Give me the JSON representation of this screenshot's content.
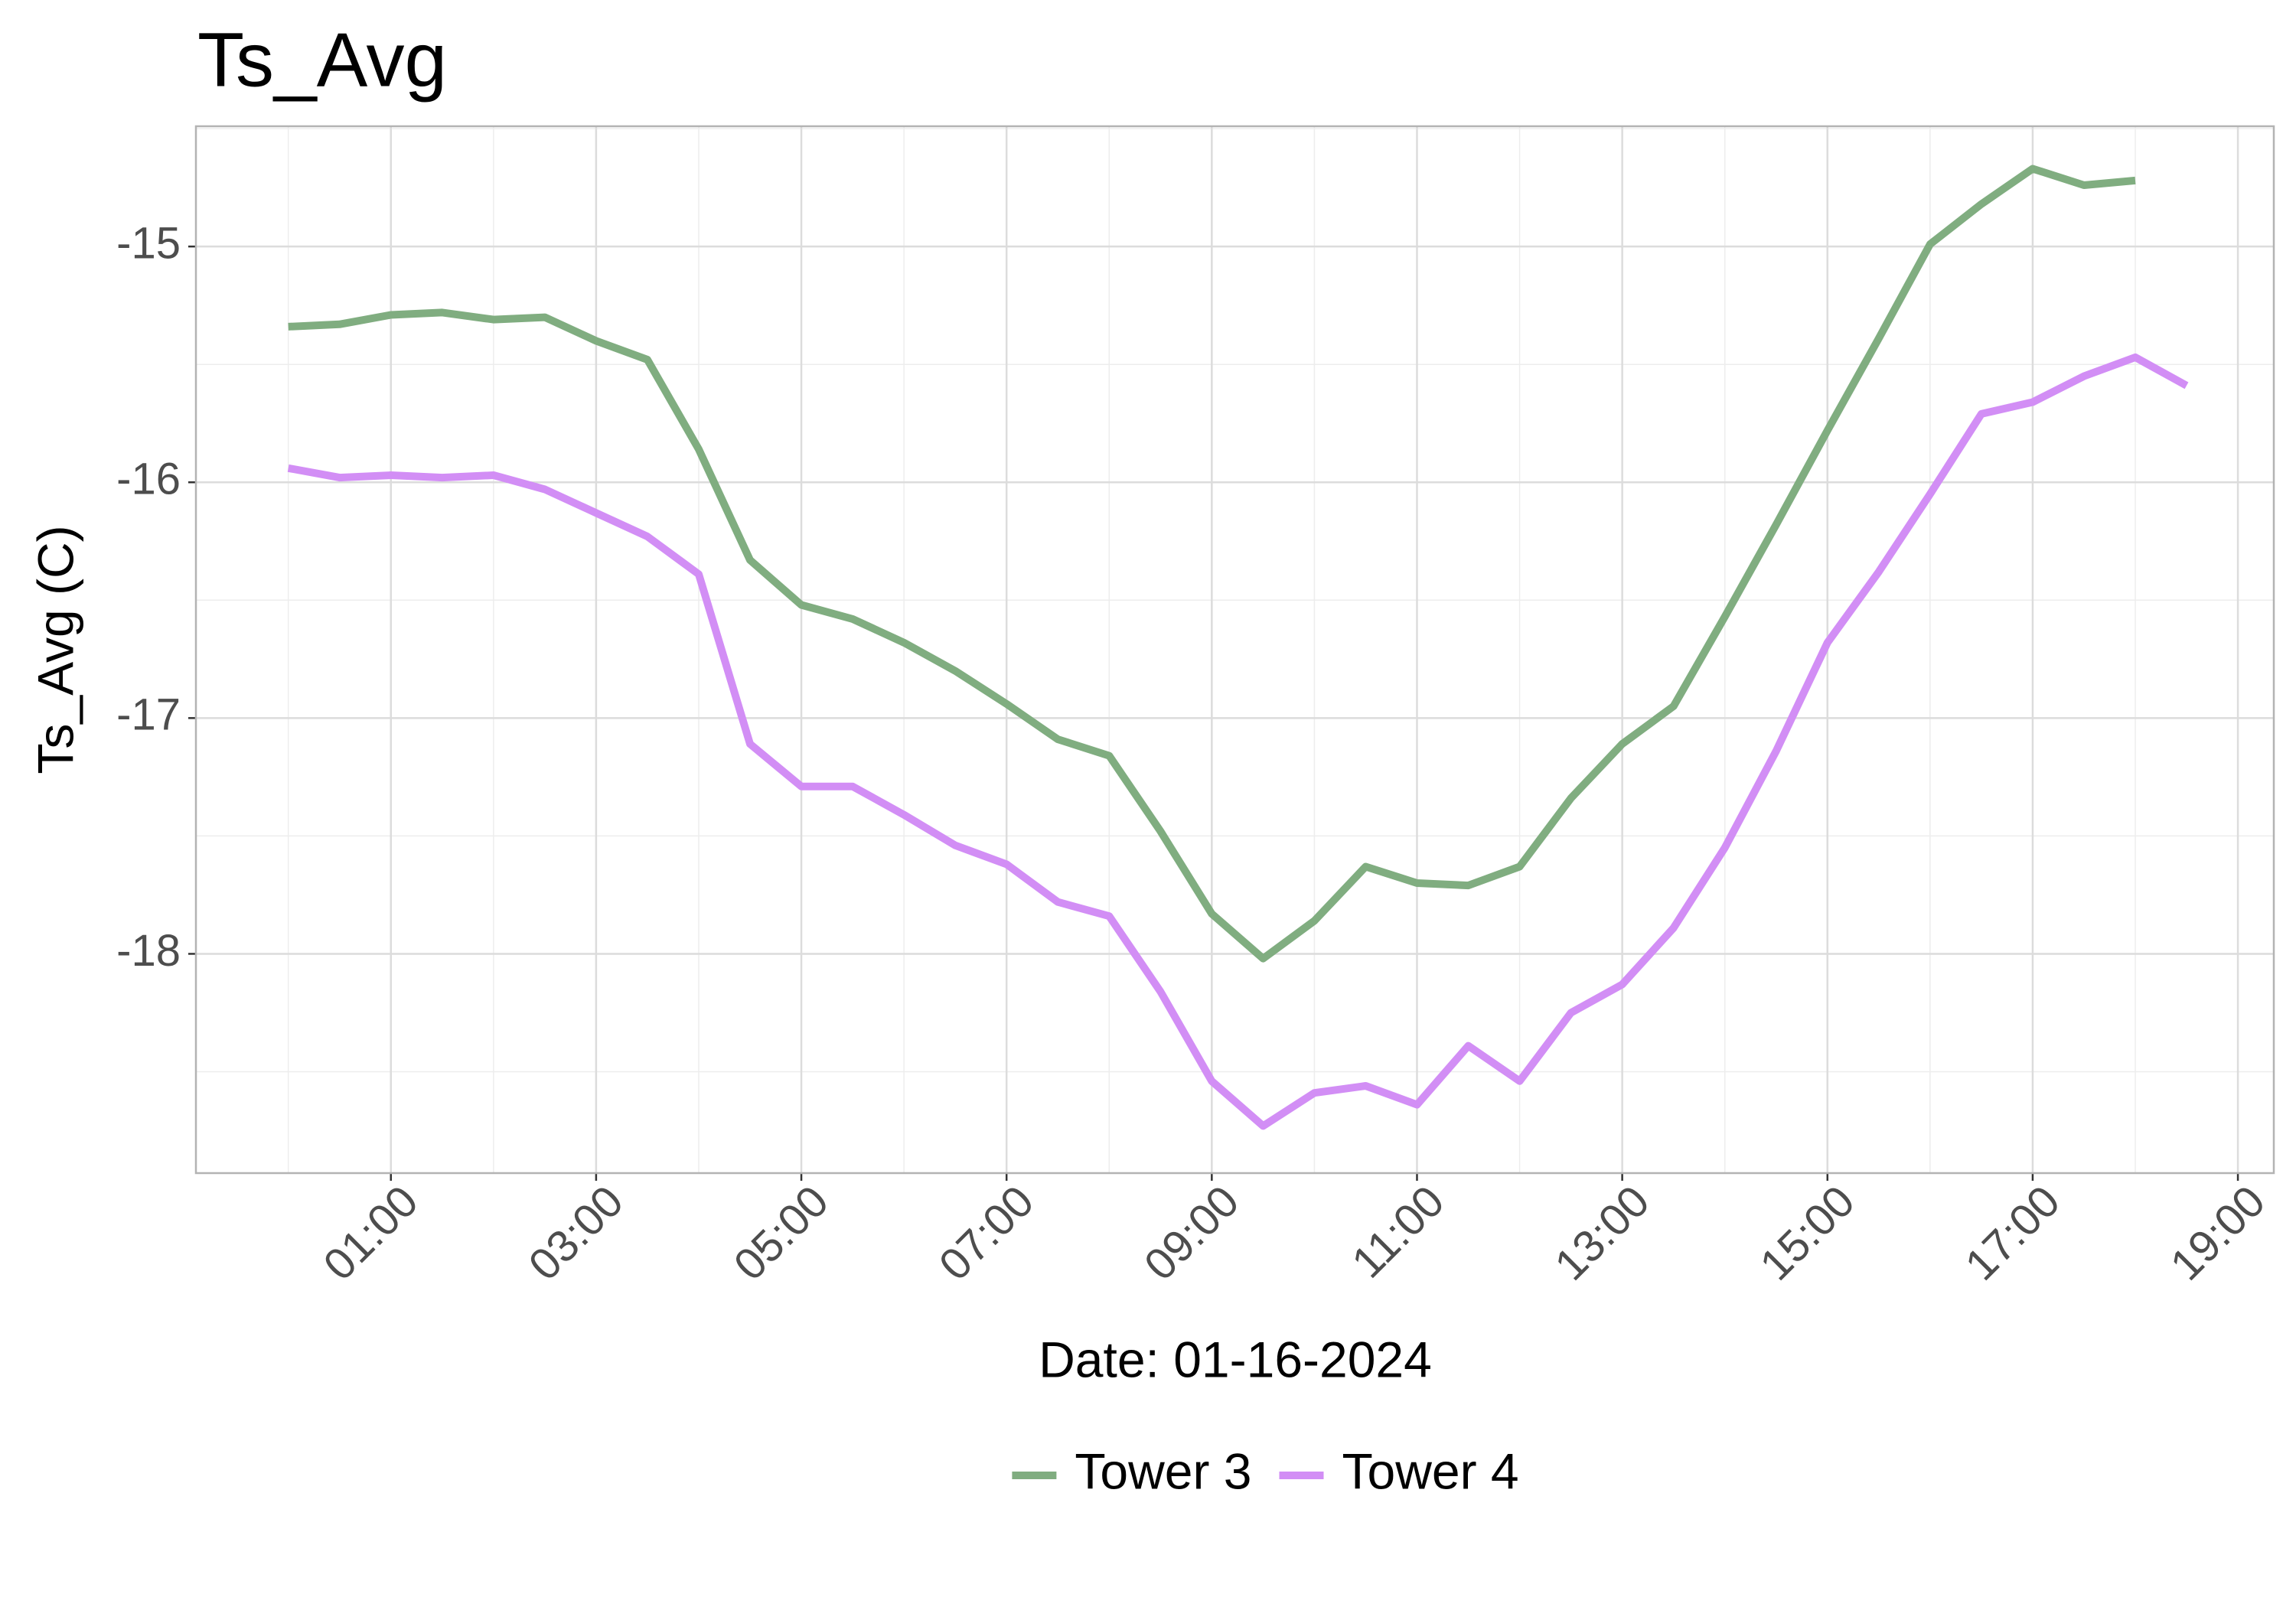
{
  "chart_data": {
    "type": "line",
    "title": "Ts_Avg",
    "x_label": "Date: 01-16-2024",
    "y_label": "Ts_Avg (C)",
    "x": [
      0,
      0.5,
      1,
      1.5,
      2,
      2.5,
      3,
      3.5,
      4,
      4.5,
      5,
      5.5,
      6,
      6.5,
      7,
      7.5,
      8,
      8.5,
      9,
      9.5,
      10,
      10.5,
      11,
      11.5,
      12,
      12.5,
      13,
      13.5,
      14,
      14.5,
      15,
      15.5,
      16,
      16.5,
      17,
      17.5,
      18,
      18.5
    ],
    "series": [
      {
        "name": "Tower 3",
        "color": "#80ad80",
        "values": [
          -15.34,
          -15.33,
          -15.29,
          -15.28,
          -15.31,
          -15.3,
          -15.4,
          -15.48,
          -15.86,
          -16.33,
          -16.52,
          -16.58,
          -16.68,
          -16.8,
          -16.94,
          -17.09,
          -17.16,
          -17.48,
          -17.83,
          -18.02,
          -17.86,
          -17.63,
          -17.7,
          -17.71,
          -17.63,
          -17.34,
          -17.11,
          -16.95,
          -16.57,
          -16.18,
          -15.78,
          -15.39,
          -14.99,
          -14.82,
          -14.67,
          -14.74,
          -14.72,
          null
        ]
      },
      {
        "name": "Tower 4",
        "color": "#d28ef5",
        "values": [
          -15.94,
          -15.98,
          -15.97,
          -15.98,
          -15.97,
          -16.03,
          -16.13,
          -16.23,
          -16.39,
          -17.11,
          -17.29,
          -17.29,
          -17.41,
          -17.54,
          -17.62,
          -17.78,
          -17.84,
          -18.16,
          -18.54,
          -18.73,
          -18.59,
          -18.56,
          -18.64,
          -18.39,
          -18.54,
          -18.25,
          -18.13,
          -17.89,
          -17.55,
          -17.14,
          -16.68,
          -16.38,
          -16.05,
          -15.71,
          -15.66,
          -15.55,
          -15.47,
          -15.59
        ]
      }
    ],
    "xlim": [
      -0.9,
      19.35
    ],
    "xticks": [
      {
        "value": 1,
        "label": "01:00"
      },
      {
        "value": 3,
        "label": "03:00"
      },
      {
        "value": 5,
        "label": "05:00"
      },
      {
        "value": 7,
        "label": "07:00"
      },
      {
        "value": 9,
        "label": "09:00"
      },
      {
        "value": 11,
        "label": "11:00"
      },
      {
        "value": 13,
        "label": "13:00"
      },
      {
        "value": 15,
        "label": "15:00"
      },
      {
        "value": 17,
        "label": "17:00"
      },
      {
        "value": 19,
        "label": "19:00"
      }
    ],
    "ylim": [
      -18.93,
      -14.49
    ],
    "yticks": [
      -18,
      -17,
      -16,
      -15
    ],
    "grid": true,
    "legend": "bottom"
  }
}
